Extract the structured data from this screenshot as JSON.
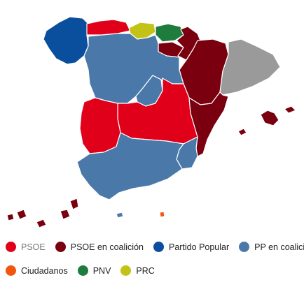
{
  "colors": {
    "psoe": "#e1001a",
    "psoe_coalicion": "#7a0010",
    "partido_popular": "#0a4f9d",
    "pp_coalicion": "#4a79a9",
    "ciudadanos": "#f2560e",
    "pnv": "#1e7d3d",
    "prc": "#c3c317",
    "other": "#9a9a9a"
  },
  "regions": [
    {
      "name": "galicia",
      "party": "partido_popular"
    },
    {
      "name": "asturias",
      "party": "psoe"
    },
    {
      "name": "cantabria",
      "party": "prc"
    },
    {
      "name": "pais-vasco",
      "party": "pnv"
    },
    {
      "name": "navarra",
      "party": "psoe_coalicion"
    },
    {
      "name": "la-rioja",
      "party": "psoe_coalicion"
    },
    {
      "name": "aragon",
      "party": "psoe_coalicion"
    },
    {
      "name": "cataluna",
      "party": "other"
    },
    {
      "name": "castilla-y-leon",
      "party": "pp_coalicion"
    },
    {
      "name": "madrid",
      "party": "pp_coalicion"
    },
    {
      "name": "castilla-la-mancha",
      "party": "psoe"
    },
    {
      "name": "extremadura",
      "party": "psoe"
    },
    {
      "name": "valencia",
      "party": "psoe_coalicion"
    },
    {
      "name": "murcia",
      "party": "pp_coalicion"
    },
    {
      "name": "andalucia",
      "party": "pp_coalicion"
    },
    {
      "name": "baleares",
      "party": "psoe_coalicion"
    },
    {
      "name": "canarias",
      "party": "psoe_coalicion"
    },
    {
      "name": "ceuta",
      "party": "pp_coalicion"
    },
    {
      "name": "melilla",
      "party": "ciudadanos"
    }
  ],
  "legend": [
    {
      "label": "PSOE",
      "color": "#e1001a",
      "muted": true
    },
    {
      "label": "PSOE en coalición",
      "color": "#7a0010"
    },
    {
      "label": "Partido Popular",
      "color": "#0a4f9d"
    },
    {
      "label": "PP en coalición",
      "color": "#4a79a9"
    },
    {
      "label": "Ciudadanos",
      "color": "#f2560e"
    },
    {
      "label": "PNV",
      "color": "#1e7d3d"
    },
    {
      "label": "PRC",
      "color": "#c3c317"
    }
  ]
}
